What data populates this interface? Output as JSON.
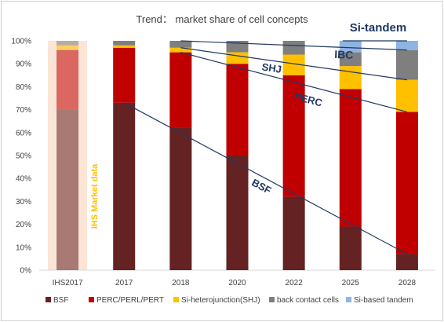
{
  "chart_data": {
    "type": "bar",
    "stacked": true,
    "title": "Trend： market share of cell concepts",
    "categories": [
      "IHS2017",
      "2017",
      "2018",
      "2020",
      "2022",
      "2025",
      "2028"
    ],
    "y_ticks": [
      "0%",
      "10%",
      "20%",
      "30%",
      "40%",
      "50%",
      "60%",
      "70%",
      "80%",
      "90%",
      "100%"
    ],
    "ylim": [
      0,
      100
    ],
    "series": [
      {
        "name": "BSF",
        "color": "#652222",
        "values": [
          70,
          73,
          62,
          50,
          32,
          19,
          7
        ]
      },
      {
        "name": "PERC/PERL/PERT",
        "color": "#c00000",
        "values": [
          26,
          24,
          33,
          40,
          53,
          60,
          62
        ]
      },
      {
        "name": "Si-heterojunction(SHJ)",
        "color": "#ffc000",
        "values": [
          2,
          1,
          2,
          5,
          9,
          10,
          14
        ]
      },
      {
        "name": "back contact cells",
        "color": "#7f7f7f",
        "values": [
          2,
          2,
          3,
          5,
          6,
          6,
          13
        ]
      },
      {
        "name": "Si-based tandem",
        "color": "#8eb4e3",
        "values": [
          0,
          0,
          0,
          0,
          0,
          5,
          4
        ]
      }
    ],
    "highlight": {
      "category": "IHS2017",
      "label": "IHS Market data",
      "band_color": "#fbe5d6"
    },
    "trend_labels": [
      {
        "text": "BSF",
        "series": "BSF"
      },
      {
        "text": "PERC",
        "series": "PERC/PERL/PERT"
      },
      {
        "text": "SHJ",
        "series": "Si-heterojunction(SHJ)"
      },
      {
        "text": "IBC",
        "series": "back contact cells"
      },
      {
        "text": "Si-tandem",
        "series": "Si-based tandem"
      }
    ],
    "legend_position": "bottom",
    "grid": false
  }
}
